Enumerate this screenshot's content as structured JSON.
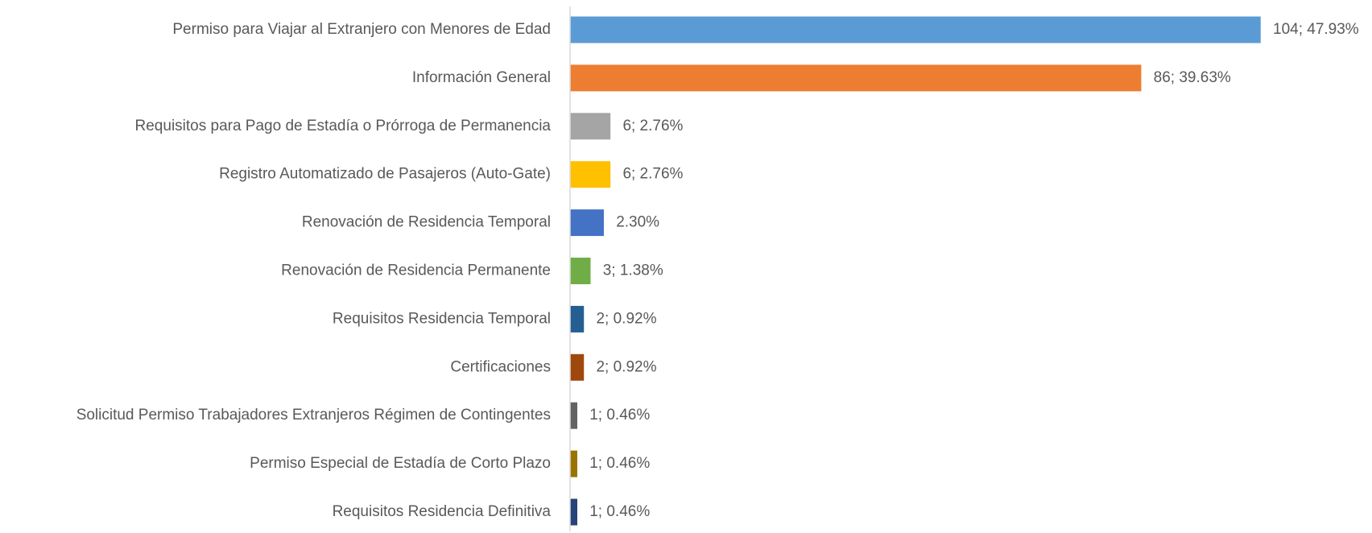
{
  "chart_data": {
    "type": "bar",
    "orientation": "horizontal",
    "categories": [
      "Permiso para Viajar al Extranjero con Menores de Edad",
      "Información General",
      "Requisitos para Pago de Estadía o Prórroga de Permanencia",
      "Registro Automatizado de Pasajeros (Auto-Gate)",
      "Renovación de Residencia Temporal",
      "Renovación de Residencia Permanente",
      "Requisitos Residencia Temporal",
      "Certificaciones",
      "Solicitud Permiso Trabajadores Extranjeros Régimen de Contingentes",
      "Permiso Especial de Estadía de Corto Plazo",
      "Requisitos Residencia Definitiva"
    ],
    "values": [
      104,
      86,
      6,
      6,
      5,
      3,
      2,
      2,
      1,
      1,
      1
    ],
    "value_labels": [
      "104; 47.93%",
      "86; 39.63%",
      "6; 2.76%",
      "6; 2.76%",
      "2.30%",
      "3; 1.38%",
      "2; 0.92%",
      "2; 0.92%",
      "1; 0.46%",
      "1; 0.46%",
      "1; 0.46%"
    ],
    "colors": [
      "#5b9bd5",
      "#ed7d31",
      "#a5a5a5",
      "#ffc000",
      "#4472c4",
      "#70ad47",
      "#255e91",
      "#9e480e",
      "#636363",
      "#997300",
      "#264478"
    ]
  }
}
